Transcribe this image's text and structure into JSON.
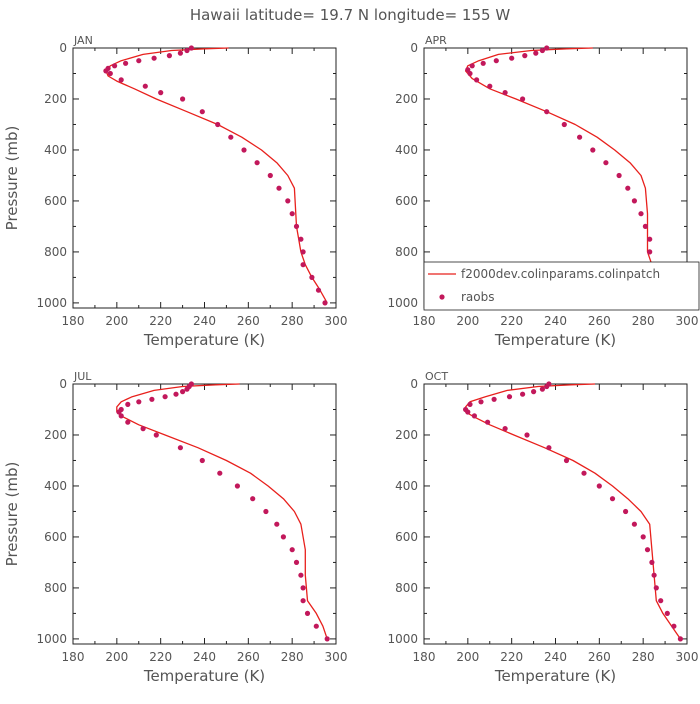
{
  "title": "Hawaii  latitude= 19.7 N longitude= 155 W",
  "colors": {
    "model": "#e8201c",
    "obs": "#c2185b",
    "axis": "#222222",
    "text": "#555555"
  },
  "legend": {
    "model_label": "f2000dev.colinparams.colinpatch",
    "obs_label": "raobs"
  },
  "chart_data": [
    {
      "type": "line",
      "panel_label": "JAN",
      "xlabel": "Temperature (K)",
      "ylabel": "Pressure (mb)",
      "xlim": [
        180,
        300
      ],
      "ylim": [
        1020,
        0
      ],
      "xticks": [
        180,
        200,
        220,
        240,
        260,
        280,
        300
      ],
      "yticks": [
        0,
        200,
        400,
        600,
        800,
        1000
      ],
      "series": [
        {
          "name": "f2000dev.colinparams.colinpatch",
          "type": "line",
          "x": [
            251,
            240,
            225,
            212,
            202,
            197,
            195,
            196,
            200,
            208,
            218,
            232,
            246,
            257,
            266,
            273,
            278,
            281,
            282,
            284,
            286,
            289,
            292,
            294,
            296
          ],
          "y": [
            0,
            3,
            10,
            25,
            50,
            70,
            90,
            110,
            130,
            160,
            200,
            250,
            300,
            350,
            400,
            450,
            500,
            550,
            700,
            800,
            850,
            900,
            940,
            970,
            1000
          ]
        },
        {
          "name": "raobs",
          "type": "scatter",
          "x": [
            234,
            232,
            229,
            224,
            217,
            210,
            204,
            199,
            196,
            195,
            197,
            202,
            213,
            220,
            230,
            239,
            246,
            252,
            258,
            264,
            270,
            274,
            278,
            280,
            282,
            284,
            285,
            285,
            289,
            292,
            295
          ],
          "y": [
            0,
            10,
            20,
            30,
            40,
            50,
            60,
            70,
            80,
            90,
            100,
            125,
            150,
            175,
            200,
            250,
            300,
            350,
            400,
            450,
            500,
            550,
            600,
            650,
            700,
            750,
            800,
            850,
            900,
            950,
            1000
          ]
        }
      ]
    },
    {
      "type": "line",
      "panel_label": "APR",
      "xlabel": "Temperature (K)",
      "ylabel": "",
      "xlim": [
        180,
        300
      ],
      "ylim": [
        1020,
        0
      ],
      "xticks": [
        180,
        200,
        220,
        240,
        260,
        280,
        300
      ],
      "yticks": [
        0,
        200,
        400,
        600,
        800,
        1000
      ],
      "legend_location": "lower-right",
      "series": [
        {
          "name": "f2000dev.colinparams.colinpatch",
          "type": "line",
          "x": [
            257,
            245,
            229,
            214,
            205,
            200,
            199,
            202,
            210,
            222,
            236,
            249,
            259,
            267,
            274,
            279,
            281,
            282,
            282,
            284,
            287,
            291,
            294
          ],
          "y": [
            0,
            3,
            10,
            25,
            50,
            70,
            90,
            120,
            160,
            200,
            250,
            300,
            350,
            400,
            450,
            500,
            550,
            650,
            800,
            850,
            900,
            950,
            1000
          ]
        },
        {
          "name": "raobs",
          "type": "scatter",
          "x": [
            236,
            234,
            231,
            226,
            220,
            213,
            207,
            202,
            200,
            201,
            204,
            210,
            217,
            225,
            236,
            244,
            251,
            257,
            263,
            269,
            273,
            276,
            279,
            281,
            283,
            283,
            284,
            286,
            290,
            294
          ],
          "y": [
            0,
            10,
            20,
            30,
            40,
            50,
            60,
            70,
            85,
            100,
            125,
            150,
            175,
            200,
            250,
            300,
            350,
            400,
            450,
            500,
            550,
            600,
            650,
            700,
            750,
            800,
            850,
            900,
            950,
            1000
          ]
        }
      ]
    },
    {
      "type": "line",
      "panel_label": "JUL",
      "xlabel": "Temperature (K)",
      "ylabel": "Pressure (mb)",
      "xlim": [
        180,
        300
      ],
      "ylim": [
        1020,
        0
      ],
      "xticks": [
        180,
        200,
        220,
        240,
        260,
        280,
        300
      ],
      "yticks": [
        0,
        200,
        400,
        600,
        800,
        1000
      ],
      "series": [
        {
          "name": "f2000dev.colinparams.colinpatch",
          "type": "line",
          "x": [
            256,
            245,
            230,
            217,
            207,
            202,
            200,
            200,
            203,
            210,
            222,
            237,
            250,
            261,
            269,
            276,
            281,
            284,
            286,
            286,
            287,
            291,
            294,
            296
          ],
          "y": [
            0,
            3,
            10,
            25,
            50,
            70,
            90,
            110,
            130,
            160,
            200,
            250,
            300,
            350,
            400,
            450,
            500,
            550,
            650,
            750,
            850,
            900,
            950,
            1000
          ]
        },
        {
          "name": "raobs",
          "type": "scatter",
          "x": [
            234,
            233,
            232,
            230,
            227,
            222,
            216,
            210,
            205,
            202,
            201,
            202,
            205,
            212,
            218,
            229,
            239,
            247,
            255,
            262,
            268,
            273,
            276,
            280,
            282,
            284,
            285,
            285,
            287,
            291,
            296
          ],
          "y": [
            0,
            10,
            20,
            30,
            40,
            50,
            60,
            70,
            80,
            100,
            110,
            125,
            150,
            175,
            200,
            250,
            300,
            350,
            400,
            450,
            500,
            550,
            600,
            650,
            700,
            750,
            800,
            850,
            900,
            950,
            1000
          ]
        }
      ]
    },
    {
      "type": "line",
      "panel_label": "OCT",
      "xlabel": "Temperature (K)",
      "ylabel": "",
      "xlim": [
        180,
        300
      ],
      "ylim": [
        1020,
        0
      ],
      "xticks": [
        180,
        200,
        220,
        240,
        260,
        280,
        300
      ],
      "yticks": [
        0,
        200,
        400,
        600,
        800,
        1000
      ],
      "series": [
        {
          "name": "f2000dev.colinparams.colinpatch",
          "type": "line",
          "x": [
            258,
            247,
            232,
            218,
            208,
            201,
            199,
            199,
            203,
            210,
            221,
            235,
            248,
            258,
            266,
            273,
            279,
            283,
            284,
            285,
            286,
            289,
            293,
            297
          ],
          "y": [
            0,
            3,
            10,
            25,
            50,
            70,
            90,
            110,
            130,
            160,
            200,
            250,
            300,
            350,
            400,
            450,
            500,
            550,
            650,
            750,
            850,
            900,
            950,
            1000
          ]
        },
        {
          "name": "raobs",
          "type": "scatter",
          "x": [
            237,
            236,
            234,
            230,
            225,
            219,
            212,
            206,
            201,
            199,
            200,
            203,
            209,
            217,
            227,
            237,
            245,
            253,
            260,
            266,
            272,
            276,
            280,
            282,
            284,
            285,
            286,
            288,
            291,
            294,
            297
          ],
          "y": [
            0,
            10,
            20,
            30,
            40,
            50,
            60,
            70,
            80,
            100,
            110,
            125,
            150,
            175,
            200,
            250,
            300,
            350,
            400,
            450,
            500,
            550,
            600,
            650,
            700,
            750,
            800,
            850,
            900,
            950,
            1000
          ]
        }
      ]
    }
  ]
}
